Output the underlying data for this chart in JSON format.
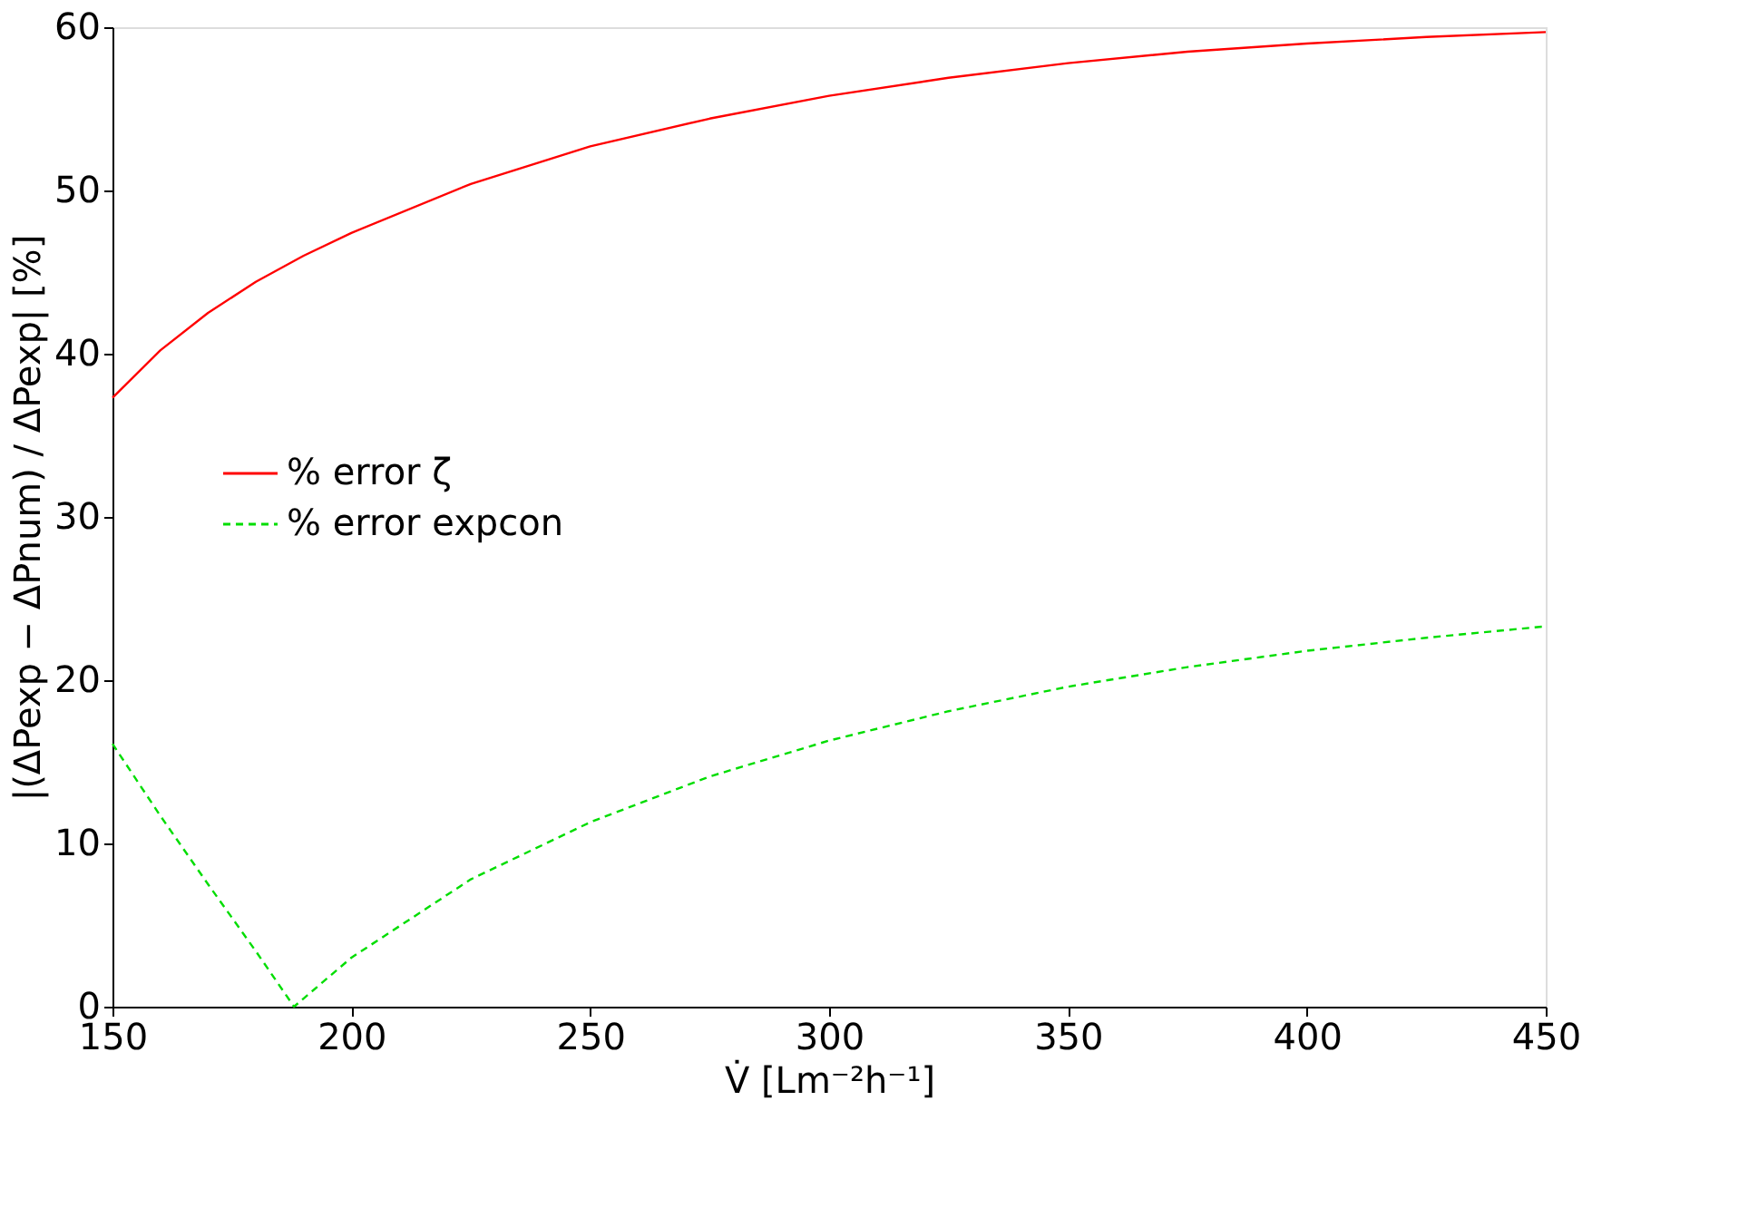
{
  "chart_data": {
    "type": "line",
    "xlabel": "V̇ [Lm⁻²h⁻¹]",
    "ylabel": "|(ΔPexp − ΔPnum) / ΔPexp| [%]",
    "xlim": [
      150,
      450
    ],
    "xticks": [
      150,
      200,
      250,
      300,
      350,
      400,
      450
    ],
    "ylim": [
      0,
      60
    ],
    "yticks": [
      0,
      10,
      20,
      30,
      40,
      50,
      60
    ],
    "grid": false,
    "legend": "left",
    "marker": "none",
    "series": [
      {
        "name": "% error ζ",
        "color": "#ff0000",
        "line_style": "solid",
        "x": [
          150,
          160,
          170,
          180,
          190,
          200,
          225,
          250,
          275,
          300,
          325,
          350,
          375,
          400,
          425,
          450
        ],
        "values": [
          37.3,
          40.2,
          42.5,
          44.4,
          46.0,
          47.4,
          50.4,
          52.7,
          54.4,
          55.8,
          56.9,
          57.8,
          58.5,
          59.0,
          59.4,
          59.7
        ]
      },
      {
        "name": "% error expcon",
        "color": "#00dd00",
        "line_style": "dashed",
        "x": [
          150,
          160,
          170,
          180,
          188,
          200,
          225,
          250,
          275,
          300,
          325,
          350,
          375,
          400,
          425,
          450
        ],
        "values": [
          16.1,
          11.7,
          7.5,
          3.4,
          0,
          3.0,
          7.8,
          11.3,
          14.1,
          16.3,
          18.1,
          19.6,
          20.8,
          21.8,
          22.6,
          23.3
        ]
      }
    ]
  }
}
